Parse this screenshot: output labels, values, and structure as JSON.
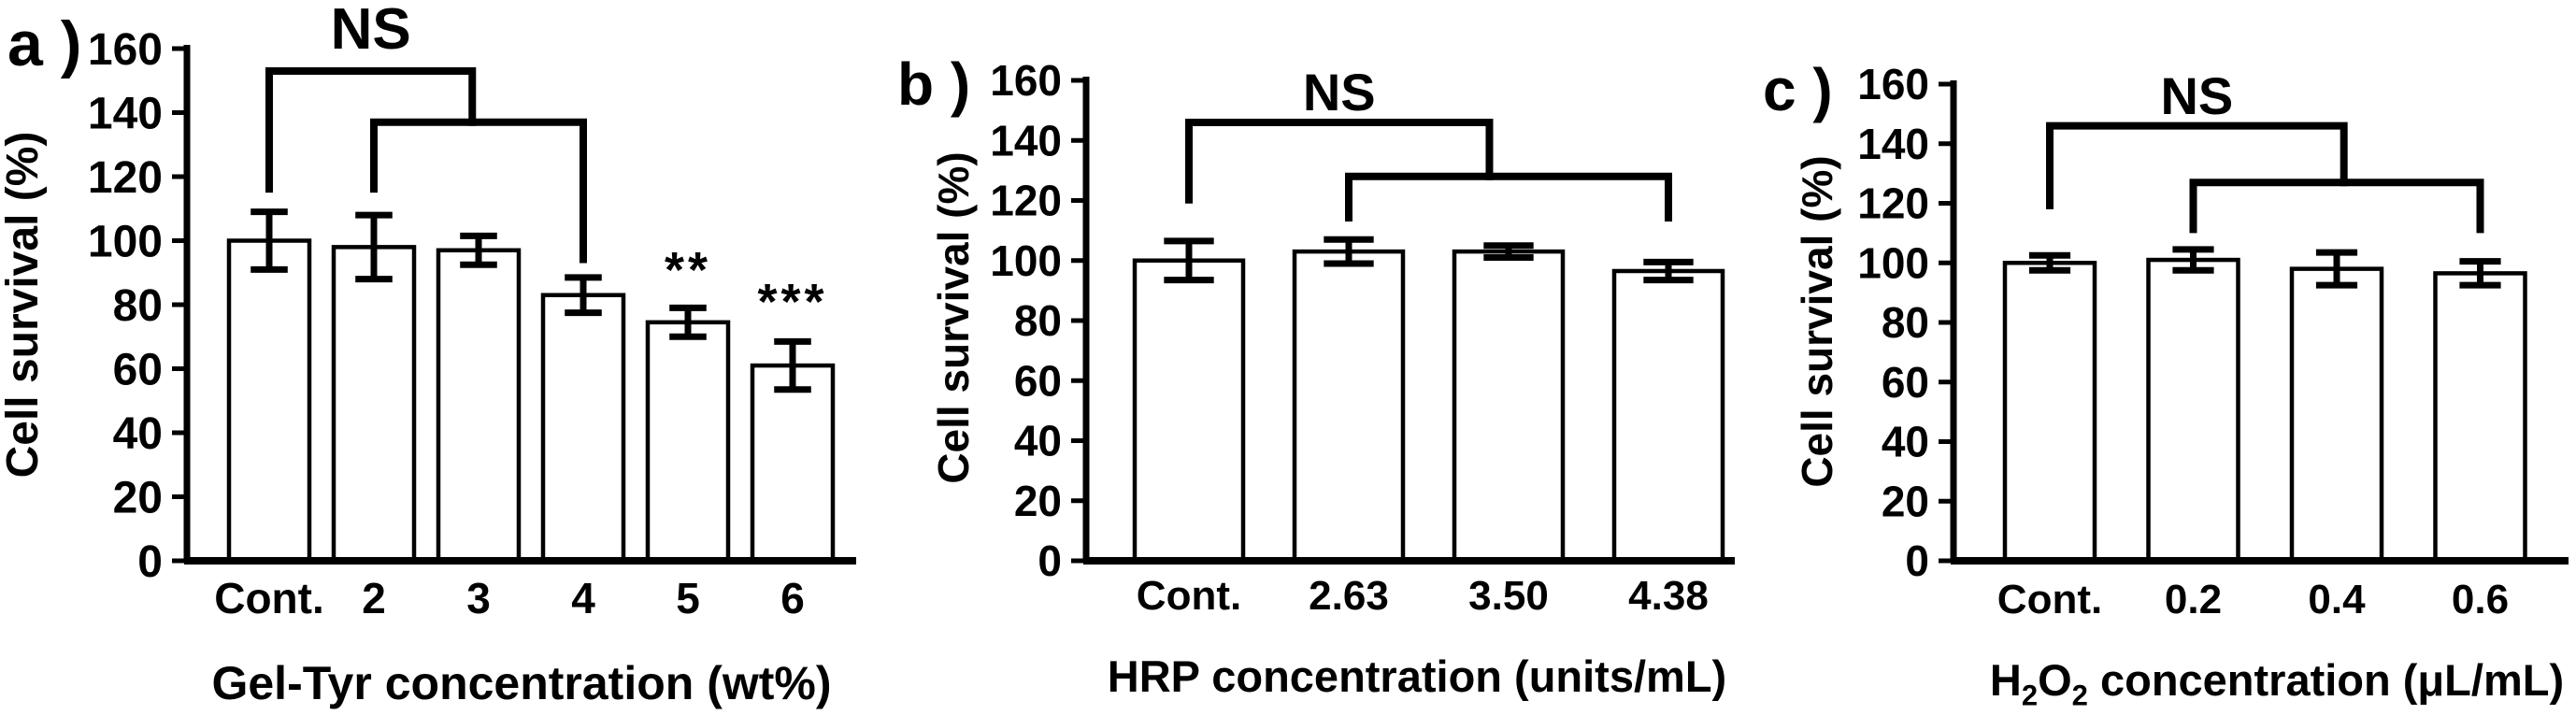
{
  "figure": {
    "background": "#ffffff",
    "ink_color": "#000000",
    "bar_fill": "#ffffff",
    "bar_stroke": "#000000"
  },
  "chart_data": [
    {
      "type": "bar",
      "panel_letter": "a )",
      "title": "",
      "xlabel": "Gel-Tyr concentration (wt%)",
      "ylabel": "Cell survival (%)",
      "ylim": [
        0,
        160
      ],
      "yticks": [
        0,
        20,
        40,
        60,
        80,
        100,
        120,
        140,
        160
      ],
      "grid": false,
      "categories": [
        "Cont.",
        "2",
        "3",
        "4",
        "5",
        "6"
      ],
      "values": [
        100,
        98,
        97,
        83,
        74.5,
        61
      ],
      "errors": [
        9,
        10,
        4.5,
        5.5,
        4.5,
        7.5
      ],
      "ns_label": "NS",
      "ns_bracket": {
        "outer": {
          "from_bar": 0,
          "top": 153,
          "drop_to": 115,
          "junction_index": 1.94
        },
        "inner": {
          "from_bar": 1,
          "to_bar": 3,
          "top": 137,
          "left_drop_to": 115,
          "right_drop_to": 93
        }
      },
      "annotations": [
        {
          "text": "**",
          "bar_index": 4,
          "y": 93.5
        },
        {
          "text": "***",
          "bar_index": 5,
          "y": 83.5
        }
      ]
    },
    {
      "type": "bar",
      "panel_letter": "b )",
      "title": "",
      "xlabel": "HRP concentration (units/mL)",
      "ylabel": "Cell survival (%)",
      "ylim": [
        0,
        160
      ],
      "yticks": [
        0,
        20,
        40,
        60,
        80,
        100,
        120,
        140,
        160
      ],
      "grid": false,
      "categories": [
        "Cont.",
        "2.63",
        "3.50",
        "4.38"
      ],
      "values": [
        100,
        103,
        103,
        96.5
      ],
      "errors": [
        6.5,
        4,
        2,
        3
      ],
      "ns_label": "NS",
      "ns_bracket": {
        "outer": {
          "from_bar": 0,
          "top": 146,
          "drop_to": 119,
          "junction_index": 1.88
        },
        "inner": {
          "from_bar": 1,
          "to_bar": 3,
          "top": 128,
          "left_drop_to": 113,
          "right_drop_to": 113
        }
      },
      "annotations": []
    },
    {
      "type": "bar",
      "panel_letter": "c )",
      "title": "",
      "xlabel": "H2O2 concentration (μL/mL)",
      "xlabel_parts": [
        {
          "text": "H"
        },
        {
          "text": "2",
          "sub": true
        },
        {
          "text": "O"
        },
        {
          "text": "2",
          "sub": true
        },
        {
          "text": " concentration (μL/mL)"
        }
      ],
      "ylabel": "Cell survival (%)",
      "ylim": [
        0,
        160
      ],
      "yticks": [
        0,
        20,
        40,
        60,
        80,
        100,
        120,
        140,
        160
      ],
      "grid": false,
      "categories": [
        "Cont.",
        "0.2",
        "0.4",
        "0.6"
      ],
      "values": [
        100,
        101,
        98,
        96.5
      ],
      "errors": [
        2.5,
        3.5,
        5.5,
        4
      ],
      "ns_label": "NS",
      "ns_bracket": {
        "outer": {
          "from_bar": 0,
          "top": 146,
          "drop_to": 118,
          "junction_index": 2.05
        },
        "inner": {
          "from_bar": 1,
          "to_bar": 3,
          "top": 127,
          "left_drop_to": 110,
          "right_drop_to": 110
        }
      },
      "annotations": []
    }
  ]
}
